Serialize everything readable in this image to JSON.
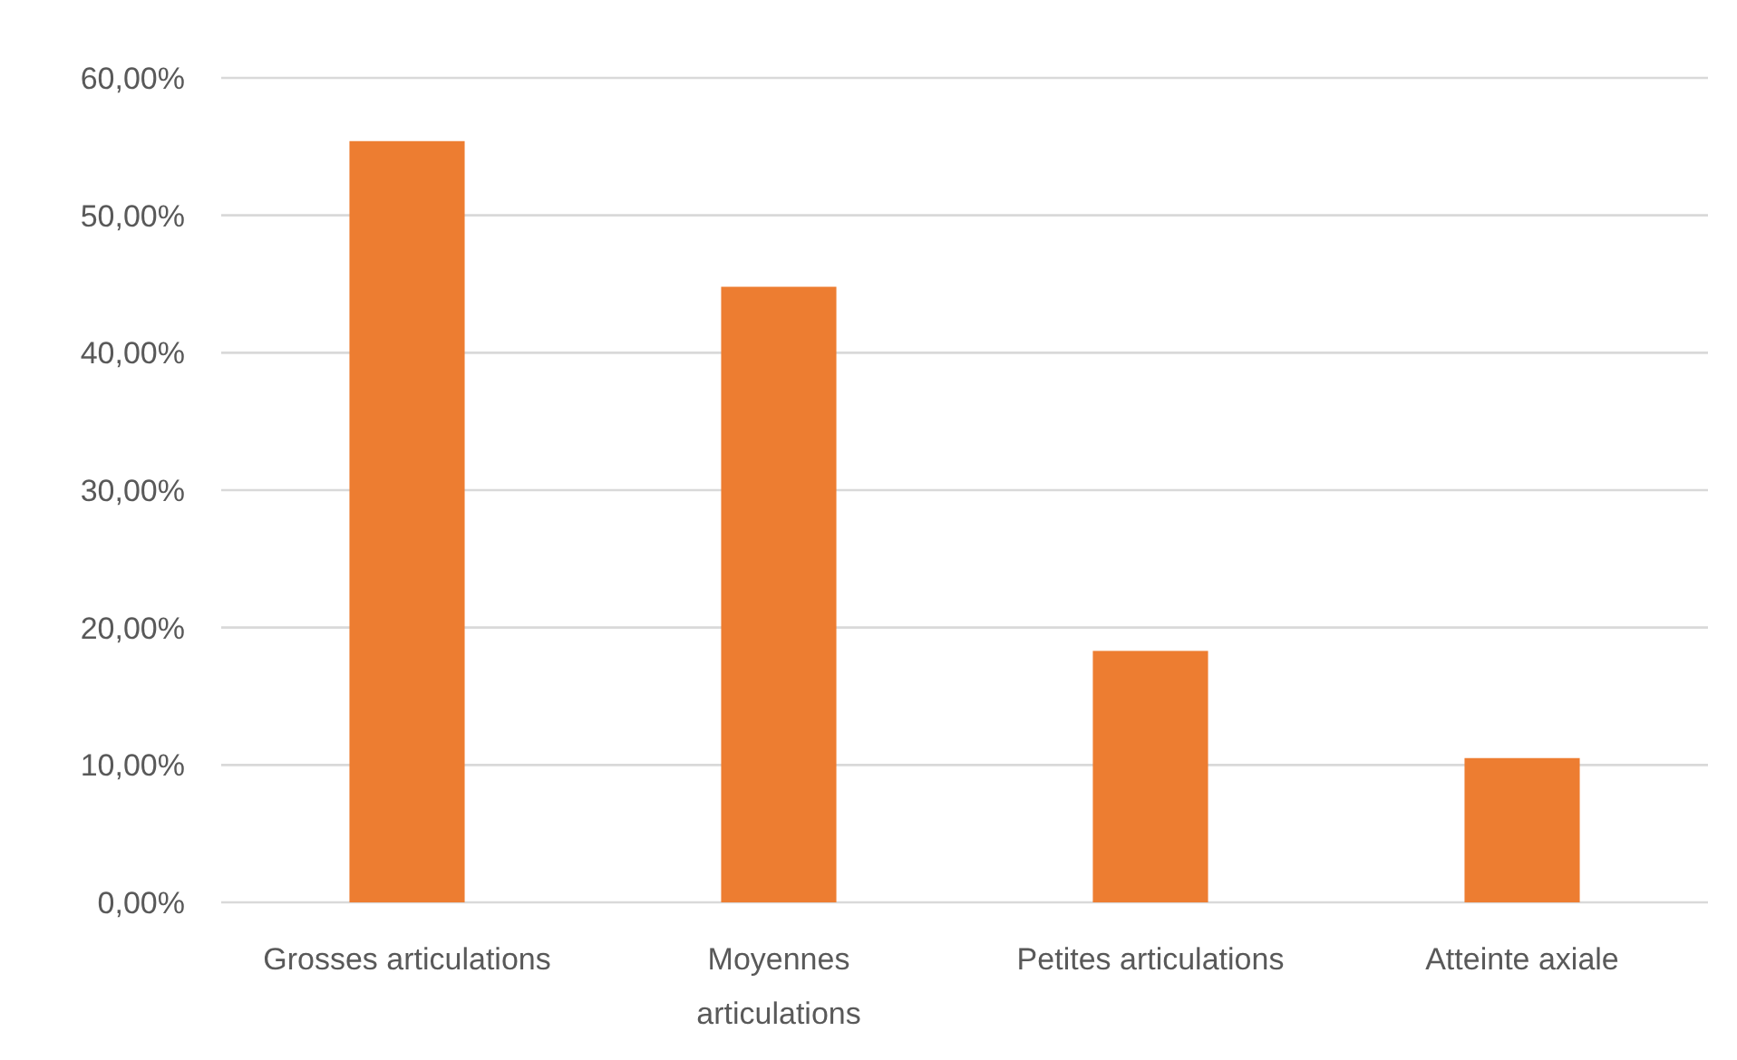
{
  "chart_data": {
    "type": "bar",
    "categories": [
      "Grosses articulations",
      "Moyennes articulations",
      "Petites articulations",
      "Atteinte axiale"
    ],
    "values": [
      55.4,
      44.8,
      18.3,
      10.5
    ],
    "color": "#ed7d31",
    "ylim": [
      0,
      60
    ],
    "yticks": [
      {
        "value": 0,
        "label": "0,00%"
      },
      {
        "value": 10,
        "label": "10,00%"
      },
      {
        "value": 20,
        "label": "20,00%"
      },
      {
        "value": 30,
        "label": "30,00%"
      },
      {
        "value": 40,
        "label": "40,00%"
      },
      {
        "value": 50,
        "label": "50,00%"
      },
      {
        "value": 60,
        "label": "60,00%"
      }
    ],
    "grid": "y"
  }
}
